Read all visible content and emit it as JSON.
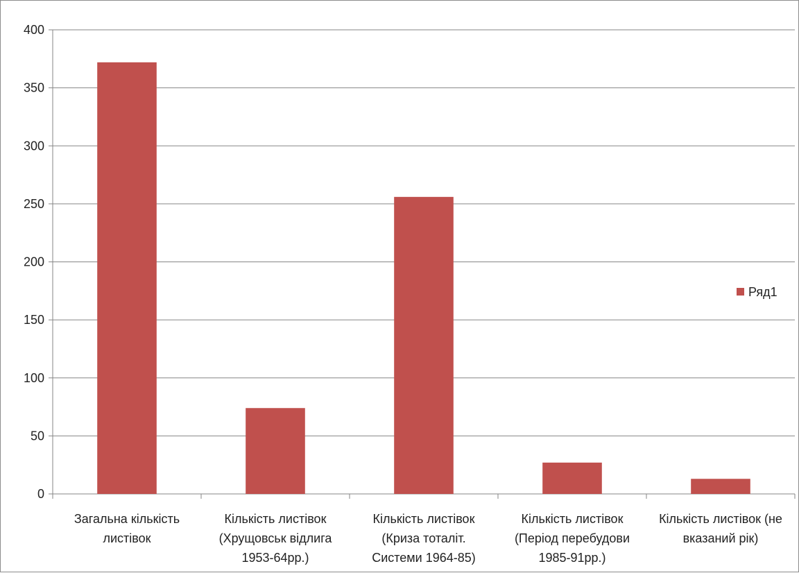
{
  "chart_data": {
    "type": "bar",
    "categories": [
      [
        "Загальна кількість",
        "листівок"
      ],
      [
        "Кількість листівок",
        "(Хрущовськ відлига",
        "1953-64рр.)"
      ],
      [
        "Кількість листівок",
        "(Криза тоталіт.",
        "Системи 1964-85)"
      ],
      [
        "Кількість листівок",
        "(Період перебудови",
        "1985-91рр.)"
      ],
      [
        "Кількість листівок (не",
        "вказаний рік)"
      ]
    ],
    "series": [
      {
        "name": "Ряд1",
        "values": [
          372,
          74,
          256,
          27,
          13
        ],
        "color": "#c0504d"
      }
    ],
    "yticks": [
      0,
      50,
      100,
      150,
      200,
      250,
      300,
      350,
      400
    ],
    "ylim": [
      0,
      400
    ],
    "grid": true,
    "legend": "right"
  }
}
